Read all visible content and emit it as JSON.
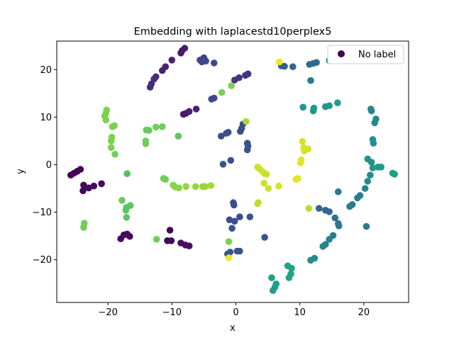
{
  "chart_data": {
    "type": "scatter",
    "title": "Embedding with laplacestd10perplex5",
    "xlabel": "x",
    "ylabel": "y",
    "xlim": [
      -28.0,
      27.0
    ],
    "ylim": [
      -29.0,
      26.0
    ],
    "xticks": [
      -20,
      -10,
      0,
      10,
      20
    ],
    "yticks": [
      -20,
      -10,
      0,
      10,
      20
    ],
    "grid": false,
    "legend": {
      "placement": "top-right",
      "entries": [
        "No label"
      ],
      "marker_color": "#440154"
    },
    "colormap": "viridis",
    "points": [
      {
        "x": -25.8,
        "y": -2.2,
        "c": 0.0
      },
      {
        "x": -25.3,
        "y": -1.8,
        "c": 0.0
      },
      {
        "x": -24.8,
        "y": -1.4,
        "c": 0.0
      },
      {
        "x": -24.3,
        "y": -1.0,
        "c": 0.0
      },
      {
        "x": -23.8,
        "y": -4.3,
        "c": 0.02
      },
      {
        "x": -23.9,
        "y": -5.5,
        "c": 0.02
      },
      {
        "x": -23.0,
        "y": -4.9,
        "c": 0.02
      },
      {
        "x": -22.2,
        "y": -4.5,
        "c": 0.02
      },
      {
        "x": -21.0,
        "y": -4.0,
        "c": 0.02
      },
      {
        "x": -18.0,
        "y": -15.6,
        "c": 0.02
      },
      {
        "x": -17.5,
        "y": -14.8,
        "c": 0.02
      },
      {
        "x": -17.0,
        "y": -14.6,
        "c": 0.02
      },
      {
        "x": -16.6,
        "y": -15.1,
        "c": 0.02
      },
      {
        "x": -10.3,
        "y": -13.8,
        "c": 0.0
      },
      {
        "x": -10.7,
        "y": -16.0,
        "c": 0.0
      },
      {
        "x": -10.1,
        "y": -16.0,
        "c": 0.02
      },
      {
        "x": -8.6,
        "y": -16.5,
        "c": 0.04
      },
      {
        "x": -7.9,
        "y": -16.9,
        "c": 0.04
      },
      {
        "x": -7.3,
        "y": -17.1,
        "c": 0.04
      },
      {
        "x": -8.4,
        "y": 24.0,
        "c": 0.07
      },
      {
        "x": -8.0,
        "y": 24.5,
        "c": 0.07
      },
      {
        "x": -8.6,
        "y": 23.5,
        "c": 0.07
      },
      {
        "x": -10.0,
        "y": 22.0,
        "c": 0.09
      },
      {
        "x": -11.0,
        "y": 20.6,
        "c": 0.09
      },
      {
        "x": -11.5,
        "y": 19.8,
        "c": 0.09
      },
      {
        "x": -12.5,
        "y": 18.5,
        "c": 0.13
      },
      {
        "x": -12.8,
        "y": 18.0,
        "c": 0.13
      },
      {
        "x": -13.2,
        "y": 17.0,
        "c": 0.13
      },
      {
        "x": -13.4,
        "y": 16.3,
        "c": 0.13
      },
      {
        "x": -8.2,
        "y": 10.6,
        "c": 0.07
      },
      {
        "x": -7.8,
        "y": 10.8,
        "c": 0.07
      },
      {
        "x": -7.3,
        "y": 11.2,
        "c": 0.09
      },
      {
        "x": -6.2,
        "y": 11.7,
        "c": 0.09
      },
      {
        "x": -5.6,
        "y": 22.0,
        "c": 0.2
      },
      {
        "x": -5.0,
        "y": 22.5,
        "c": 0.2
      },
      {
        "x": -4.7,
        "y": 21.8,
        "c": 0.22
      },
      {
        "x": -5.3,
        "y": 21.6,
        "c": 0.22
      },
      {
        "x": -3.4,
        "y": 21.4,
        "c": 0.22
      },
      {
        "x": -3.8,
        "y": 13.8,
        "c": 0.22
      },
      {
        "x": -3.4,
        "y": 14.0,
        "c": 0.22
      },
      {
        "x": -0.2,
        "y": 17.8,
        "c": 0.15
      },
      {
        "x": 0.5,
        "y": 18.3,
        "c": 0.15
      },
      {
        "x": 1.5,
        "y": 18.8,
        "c": 0.15
      },
      {
        "x": 1.9,
        "y": 19.1,
        "c": 0.15
      },
      {
        "x": -2.3,
        "y": 6.0,
        "c": 0.24
      },
      {
        "x": -1.5,
        "y": 6.6,
        "c": 0.24
      },
      {
        "x": -1.2,
        "y": 6.8,
        "c": 0.24
      },
      {
        "x": 0.7,
        "y": 7.0,
        "c": 0.24
      },
      {
        "x": 0.9,
        "y": 7.6,
        "c": 0.24
      },
      {
        "x": 1.1,
        "y": 8.5,
        "c": 0.24
      },
      {
        "x": 1.8,
        "y": 4.5,
        "c": 0.26
      },
      {
        "x": 1.9,
        "y": 3.9,
        "c": 0.26
      },
      {
        "x": 1.8,
        "y": 3.1,
        "c": 0.26
      },
      {
        "x": -2.0,
        "y": 0.1,
        "c": 0.26
      },
      {
        "x": -0.8,
        "y": 0.9,
        "c": 0.26
      },
      {
        "x": -0.4,
        "y": -8.0,
        "c": 0.24
      },
      {
        "x": -0.3,
        "y": -8.5,
        "c": 0.24
      },
      {
        "x": -1.0,
        "y": -11.6,
        "c": 0.24
      },
      {
        "x": -0.2,
        "y": -11.9,
        "c": 0.24
      },
      {
        "x": 0.6,
        "y": -11.0,
        "c": 0.24
      },
      {
        "x": -0.6,
        "y": -13.4,
        "c": 0.26
      },
      {
        "x": 2.2,
        "y": -11.0,
        "c": 0.26
      },
      {
        "x": -1.3,
        "y": -18.8,
        "c": 0.26
      },
      {
        "x": -0.9,
        "y": -18.4,
        "c": 0.26
      },
      {
        "x": 0.2,
        "y": -18.2,
        "c": 0.26
      },
      {
        "x": 0.6,
        "y": -18.2,
        "c": 0.26
      },
      {
        "x": 4.5,
        "y": -15.3,
        "c": 0.26
      },
      {
        "x": 7.1,
        "y": 20.8,
        "c": 0.3
      },
      {
        "x": 7.6,
        "y": 20.7,
        "c": 0.3
      },
      {
        "x": 8.9,
        "y": 20.6,
        "c": 0.33
      },
      {
        "x": 11.5,
        "y": 21.1,
        "c": 0.35
      },
      {
        "x": 12.1,
        "y": 21.3,
        "c": 0.35
      },
      {
        "x": 12.6,
        "y": 21.5,
        "c": 0.35
      },
      {
        "x": 11.7,
        "y": 17.7,
        "c": 0.4
      },
      {
        "x": 13.0,
        "y": -9.2,
        "c": 0.33
      },
      {
        "x": 14.0,
        "y": -9.6,
        "c": 0.33
      },
      {
        "x": 14.6,
        "y": -9.9,
        "c": 0.33
      },
      {
        "x": 15.5,
        "y": -11.2,
        "c": 0.38
      },
      {
        "x": 16.0,
        "y": -12.4,
        "c": 0.4
      },
      {
        "x": 16.1,
        "y": -12.9,
        "c": 0.4
      },
      {
        "x": 16.0,
        "y": -5.7,
        "c": 0.42
      },
      {
        "x": 15.2,
        "y": -14.9,
        "c": 0.44
      },
      {
        "x": 14.6,
        "y": -15.7,
        "c": 0.44
      },
      {
        "x": 14.0,
        "y": -16.8,
        "c": 0.44
      },
      {
        "x": 13.6,
        "y": -17.2,
        "c": 0.46
      },
      {
        "x": 12.3,
        "y": -19.7,
        "c": 0.48
      },
      {
        "x": 11.7,
        "y": -20.1,
        "c": 0.48
      },
      {
        "x": 14.6,
        "y": 21.9,
        "c": 0.5
      },
      {
        "x": 15.0,
        "y": 22.0,
        "c": 0.52
      },
      {
        "x": 10.5,
        "y": 12.1,
        "c": 0.53
      },
      {
        "x": 12.2,
        "y": 11.9,
        "c": 0.53
      },
      {
        "x": 12.1,
        "y": 11.3,
        "c": 0.53
      },
      {
        "x": 14.0,
        "y": 12.2,
        "c": 0.53
      },
      {
        "x": 14.6,
        "y": 12.4,
        "c": 0.53
      },
      {
        "x": 15.9,
        "y": 13.0,
        "c": 0.55
      },
      {
        "x": 21.1,
        "y": 11.7,
        "c": 0.46
      },
      {
        "x": 21.2,
        "y": 11.3,
        "c": 0.46
      },
      {
        "x": 21.9,
        "y": 9.6,
        "c": 0.48
      },
      {
        "x": 21.7,
        "y": 8.8,
        "c": 0.48
      },
      {
        "x": 21.4,
        "y": 5.3,
        "c": 0.5
      },
      {
        "x": 21.5,
        "y": 4.5,
        "c": 0.5
      },
      {
        "x": 20.6,
        "y": 1.2,
        "c": 0.5
      },
      {
        "x": 21.2,
        "y": 0.5,
        "c": 0.5
      },
      {
        "x": 21.4,
        "y": -0.7,
        "c": 0.52
      },
      {
        "x": 22.2,
        "y": -0.5,
        "c": 0.53
      },
      {
        "x": 22.7,
        "y": -0.5,
        "c": 0.53
      },
      {
        "x": 24.5,
        "y": -1.8,
        "c": 0.55
      },
      {
        "x": 24.8,
        "y": -2.0,
        "c": 0.55
      },
      {
        "x": 21.0,
        "y": -2.2,
        "c": 0.48
      },
      {
        "x": 20.6,
        "y": -3.5,
        "c": 0.48
      },
      {
        "x": 20.2,
        "y": -5.0,
        "c": 0.46
      },
      {
        "x": 19.4,
        "y": -6.5,
        "c": 0.44
      },
      {
        "x": 19.0,
        "y": -7.0,
        "c": 0.44
      },
      {
        "x": 18.2,
        "y": -8.4,
        "c": 0.42
      },
      {
        "x": 17.8,
        "y": -8.8,
        "c": 0.42
      },
      {
        "x": 20.4,
        "y": -13.0,
        "c": 0.42
      },
      {
        "x": 5.6,
        "y": -23.8,
        "c": 0.56
      },
      {
        "x": 5.8,
        "y": -26.5,
        "c": 0.56
      },
      {
        "x": 6.1,
        "y": -25.8,
        "c": 0.56
      },
      {
        "x": 6.3,
        "y": -25.1,
        "c": 0.56
      },
      {
        "x": 8.1,
        "y": -21.3,
        "c": 0.58
      },
      {
        "x": 8.7,
        "y": -21.8,
        "c": 0.58
      },
      {
        "x": 8.3,
        "y": -23.8,
        "c": 0.58
      },
      {
        "x": 8.6,
        "y": -23.0,
        "c": 0.58
      },
      {
        "x": -20.2,
        "y": 11.5,
        "c": 0.8
      },
      {
        "x": -20.3,
        "y": 10.8,
        "c": 0.8
      },
      {
        "x": -20.5,
        "y": 10.2,
        "c": 0.8
      },
      {
        "x": -20.3,
        "y": 9.4,
        "c": 0.8
      },
      {
        "x": -19.3,
        "y": 8.0,
        "c": 0.8
      },
      {
        "x": -19.0,
        "y": 8.2,
        "c": 0.8
      },
      {
        "x": -19.4,
        "y": 5.8,
        "c": 0.8
      },
      {
        "x": -19.5,
        "y": 5.0,
        "c": 0.8
      },
      {
        "x": -19.5,
        "y": 3.6,
        "c": 0.8
      },
      {
        "x": -18.9,
        "y": 2.2,
        "c": 0.78
      },
      {
        "x": -17.0,
        "y": -1.9,
        "c": 0.72
      },
      {
        "x": -17.8,
        "y": -7.5,
        "c": 0.76
      },
      {
        "x": -17.1,
        "y": -9.0,
        "c": 0.74
      },
      {
        "x": -17.2,
        "y": -9.6,
        "c": 0.74
      },
      {
        "x": -16.5,
        "y": -8.6,
        "c": 0.74
      },
      {
        "x": -17.1,
        "y": -11.1,
        "c": 0.74
      },
      {
        "x": -23.7,
        "y": -12.3,
        "c": 0.78
      },
      {
        "x": -23.8,
        "y": -13.2,
        "c": 0.78
      },
      {
        "x": -14.0,
        "y": 7.3,
        "c": 0.76
      },
      {
        "x": -13.6,
        "y": 7.2,
        "c": 0.76
      },
      {
        "x": -12.5,
        "y": 7.9,
        "c": 0.78
      },
      {
        "x": -11.5,
        "y": 8.0,
        "c": 0.78
      },
      {
        "x": -14.1,
        "y": 5.0,
        "c": 0.78
      },
      {
        "x": -14.1,
        "y": 4.4,
        "c": 0.78
      },
      {
        "x": -9.0,
        "y": 6.0,
        "c": 0.74
      },
      {
        "x": -2.2,
        "y": 15.2,
        "c": 0.8
      },
      {
        "x": -0.7,
        "y": 16.6,
        "c": 0.8
      },
      {
        "x": -11.3,
        "y": -2.9,
        "c": 0.78
      },
      {
        "x": -11.0,
        "y": -3.1,
        "c": 0.78
      },
      {
        "x": -9.8,
        "y": -4.3,
        "c": 0.82
      },
      {
        "x": -9.5,
        "y": -4.7,
        "c": 0.82
      },
      {
        "x": -8.9,
        "y": -4.9,
        "c": 0.82
      },
      {
        "x": -7.8,
        "y": -4.6,
        "c": 0.84
      },
      {
        "x": -6.3,
        "y": -4.6,
        "c": 0.84
      },
      {
        "x": -5.2,
        "y": -4.6,
        "c": 0.84
      },
      {
        "x": -4.8,
        "y": -4.6,
        "c": 0.84
      },
      {
        "x": -3.9,
        "y": -4.4,
        "c": 0.86
      },
      {
        "x": -12.4,
        "y": -15.7,
        "c": 0.78
      },
      {
        "x": -1.1,
        "y": -16.2,
        "c": 0.8
      },
      {
        "x": 1.6,
        "y": 9.1,
        "c": 0.86
      },
      {
        "x": 3.4,
        "y": -0.5,
        "c": 0.92
      },
      {
        "x": 3.7,
        "y": -0.9,
        "c": 0.92
      },
      {
        "x": 4.2,
        "y": -1.5,
        "c": 0.92
      },
      {
        "x": 4.5,
        "y": -1.9,
        "c": 0.92
      },
      {
        "x": 4.8,
        "y": -2.0,
        "c": 0.92
      },
      {
        "x": 4.4,
        "y": -3.9,
        "c": 0.92
      },
      {
        "x": 5.1,
        "y": -5.0,
        "c": 0.92
      },
      {
        "x": 6.7,
        "y": -4.5,
        "c": 0.94
      },
      {
        "x": 3.4,
        "y": -8.2,
        "c": 0.9
      },
      {
        "x": 3.5,
        "y": -8.0,
        "c": 0.9
      },
      {
        "x": 10.4,
        "y": 4.9,
        "c": 0.94
      },
      {
        "x": 10.6,
        "y": 3.6,
        "c": 0.94
      },
      {
        "x": 10.7,
        "y": 2.9,
        "c": 0.94
      },
      {
        "x": 11.3,
        "y": 3.3,
        "c": 0.94
      },
      {
        "x": 10.2,
        "y": 1.0,
        "c": 0.96
      },
      {
        "x": 10.1,
        "y": 0.4,
        "c": 0.96
      },
      {
        "x": 9.4,
        "y": -3.1,
        "c": 0.96
      },
      {
        "x": 9.7,
        "y": -2.9,
        "c": 0.96
      },
      {
        "x": 11.4,
        "y": -9.2,
        "c": 0.9
      },
      {
        "x": 6.8,
        "y": 21.6,
        "c": 0.98
      },
      {
        "x": -1.1,
        "y": -19.6,
        "c": 0.98
      }
    ]
  }
}
